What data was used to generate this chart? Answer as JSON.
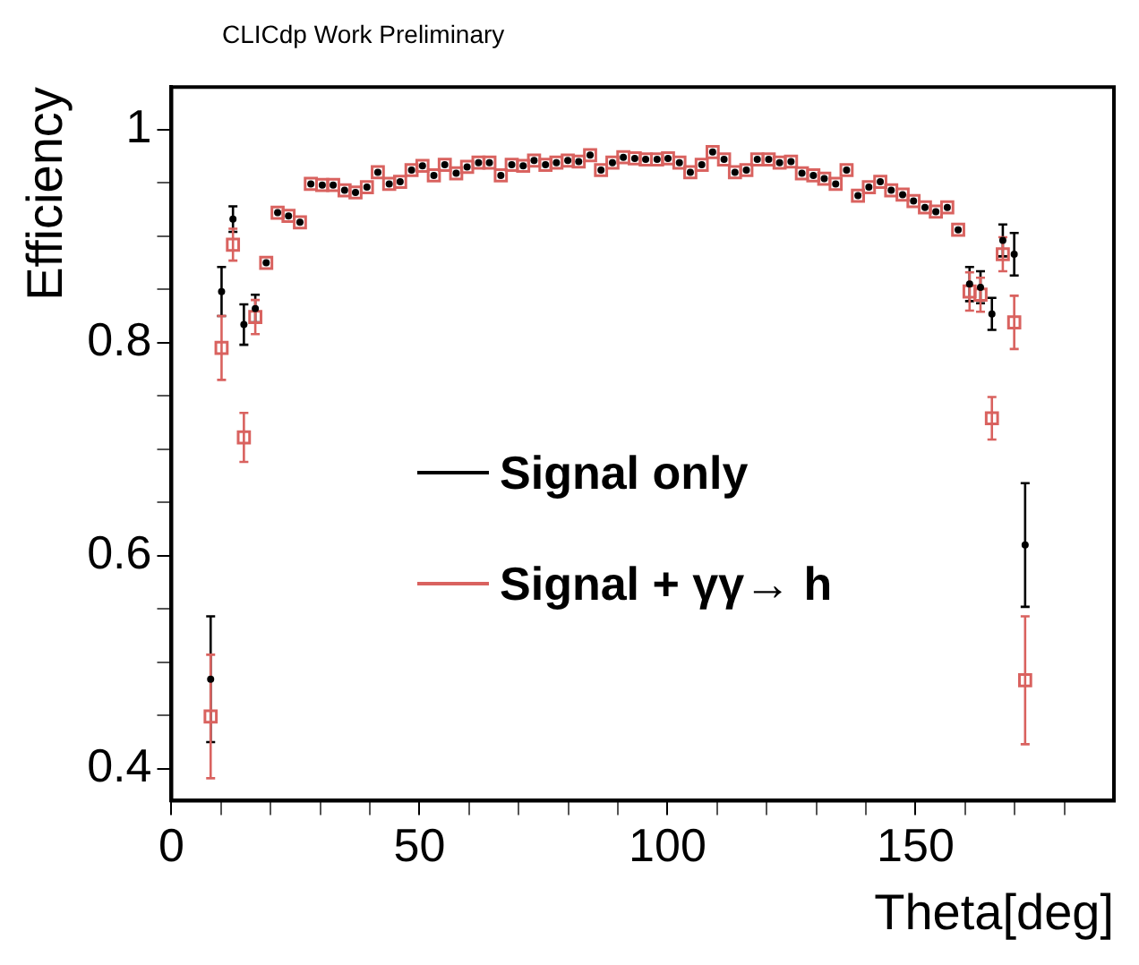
{
  "chart_data": {
    "type": "scatter",
    "annotations": [
      "CLICdp Work Preliminary"
    ],
    "xlabel": "Theta[deg]",
    "ylabel": "Efficiency",
    "xlim": [
      0,
      190
    ],
    "ylim": [
      0.37,
      1.04
    ],
    "xticks": [
      0,
      {
        "value": 10,
        "label": null
      },
      {
        "value": 20,
        "label": null
      },
      {
        "value": 30,
        "label": null
      },
      {
        "value": 40,
        "label": null
      },
      50,
      {
        "value": 60,
        "label": null
      },
      {
        "value": 70,
        "label": null
      },
      {
        "value": 80,
        "label": null
      },
      {
        "value": 90,
        "label": null
      },
      100,
      {
        "value": 110,
        "label": null
      },
      {
        "value": 120,
        "label": null
      },
      {
        "value": 130,
        "label": null
      },
      {
        "value": 140,
        "label": null
      },
      150,
      {
        "value": 160,
        "label": null
      },
      {
        "value": 170,
        "label": null
      },
      {
        "value": 180,
        "label": null
      }
    ],
    "yticks": [
      0.4,
      {
        "value": 0.45,
        "label": null
      },
      {
        "value": 0.5,
        "label": null
      },
      {
        "value": 0.55,
        "label": null
      },
      0.6,
      {
        "value": 0.65,
        "label": null
      },
      {
        "value": 0.7,
        "label": null
      },
      {
        "value": 0.75,
        "label": null
      },
      0.8,
      {
        "value": 0.85,
        "label": null
      },
      {
        "value": 0.9,
        "label": null
      },
      {
        "value": 0.95,
        "label": null
      },
      {
        "value": 1,
        "label": "1"
      }
    ],
    "grid": false,
    "legend": "center",
    "x": [
      7.9,
      10.1,
      12.4,
      14.6,
      16.9,
      19.1,
      21.4,
      23.6,
      25.9,
      28.1,
      30.4,
      32.6,
      34.9,
      37.1,
      39.4,
      41.6,
      43.9,
      46.1,
      48.4,
      50.6,
      52.9,
      55.1,
      57.4,
      59.6,
      61.9,
      64.1,
      66.4,
      68.6,
      70.9,
      73.1,
      75.4,
      77.6,
      79.9,
      82.1,
      84.4,
      86.6,
      88.9,
      91.1,
      93.4,
      95.6,
      97.9,
      100.1,
      102.4,
      104.6,
      106.9,
      109.1,
      111.4,
      113.6,
      115.9,
      118.1,
      120.4,
      122.6,
      124.9,
      127.1,
      129.4,
      131.6,
      133.9,
      136.1,
      138.4,
      140.6,
      142.9,
      145.1,
      147.4,
      149.6,
      151.9,
      154.1,
      156.4,
      158.6,
      160.9,
      163.1,
      165.4,
      167.6,
      169.9,
      172.1
    ],
    "series": [
      {
        "name": "Signal only",
        "color": "#000000",
        "values": [
          0.484,
          0.848,
          0.916,
          0.817,
          0.832,
          0.875,
          0.922,
          0.919,
          0.913,
          0.949,
          0.948,
          0.948,
          0.943,
          0.941,
          0.946,
          0.96,
          0.949,
          0.951,
          0.962,
          0.966,
          0.957,
          0.967,
          0.959,
          0.965,
          0.969,
          0.969,
          0.957,
          0.967,
          0.966,
          0.971,
          0.967,
          0.969,
          0.971,
          0.97,
          0.976,
          0.962,
          0.969,
          0.974,
          0.973,
          0.972,
          0.972,
          0.973,
          0.969,
          0.96,
          0.967,
          0.979,
          0.972,
          0.96,
          0.962,
          0.972,
          0.972,
          0.969,
          0.97,
          0.959,
          0.957,
          0.954,
          0.949,
          0.962,
          0.938,
          0.946,
          0.951,
          0.943,
          0.939,
          0.933,
          0.927,
          0.923,
          0.927,
          0.906,
          0.855,
          0.852,
          0.827,
          0.896,
          0.883,
          0.61
        ],
        "errors": [
          0.059,
          0.023,
          0.012,
          0.019,
          0.013,
          null,
          null,
          null,
          null,
          null,
          null,
          null,
          null,
          null,
          null,
          null,
          null,
          null,
          null,
          null,
          null,
          null,
          null,
          null,
          null,
          null,
          null,
          null,
          null,
          null,
          null,
          null,
          null,
          null,
          null,
          null,
          null,
          null,
          null,
          null,
          null,
          null,
          null,
          null,
          null,
          null,
          null,
          null,
          null,
          null,
          null,
          null,
          null,
          null,
          null,
          null,
          null,
          null,
          null,
          null,
          null,
          null,
          null,
          null,
          null,
          null,
          null,
          null,
          0.016,
          0.015,
          0.015,
          0.015,
          0.02,
          0.058
        ]
      },
      {
        "name": "Signal + γγ→ h",
        "color": "#d9625f",
        "values": [
          0.449,
          0.795,
          0.892,
          0.711,
          0.824,
          0.875,
          0.922,
          0.919,
          0.913,
          0.949,
          0.948,
          0.948,
          0.943,
          0.941,
          0.946,
          0.96,
          0.949,
          0.951,
          0.962,
          0.966,
          0.957,
          0.967,
          0.959,
          0.965,
          0.969,
          0.969,
          0.957,
          0.967,
          0.966,
          0.971,
          0.967,
          0.969,
          0.971,
          0.97,
          0.976,
          0.962,
          0.969,
          0.974,
          0.973,
          0.972,
          0.972,
          0.973,
          0.969,
          0.96,
          0.967,
          0.979,
          0.972,
          0.96,
          0.962,
          0.972,
          0.972,
          0.969,
          0.97,
          0.959,
          0.957,
          0.954,
          0.949,
          0.962,
          0.938,
          0.946,
          0.951,
          0.943,
          0.939,
          0.933,
          0.927,
          0.923,
          0.927,
          0.906,
          0.848,
          0.845,
          0.729,
          0.883,
          0.819,
          0.483
        ],
        "errors": [
          0.058,
          0.03,
          0.015,
          0.023,
          0.016,
          null,
          null,
          null,
          null,
          null,
          null,
          null,
          null,
          null,
          null,
          null,
          null,
          null,
          null,
          null,
          null,
          null,
          null,
          null,
          null,
          null,
          null,
          null,
          null,
          null,
          null,
          null,
          null,
          null,
          null,
          null,
          null,
          null,
          null,
          null,
          null,
          null,
          null,
          null,
          null,
          null,
          null,
          null,
          null,
          null,
          null,
          null,
          null,
          null,
          null,
          null,
          null,
          null,
          null,
          null,
          null,
          null,
          null,
          null,
          null,
          null,
          null,
          null,
          0.018,
          0.016,
          0.02,
          0.016,
          0.025,
          0.06
        ]
      }
    ]
  }
}
